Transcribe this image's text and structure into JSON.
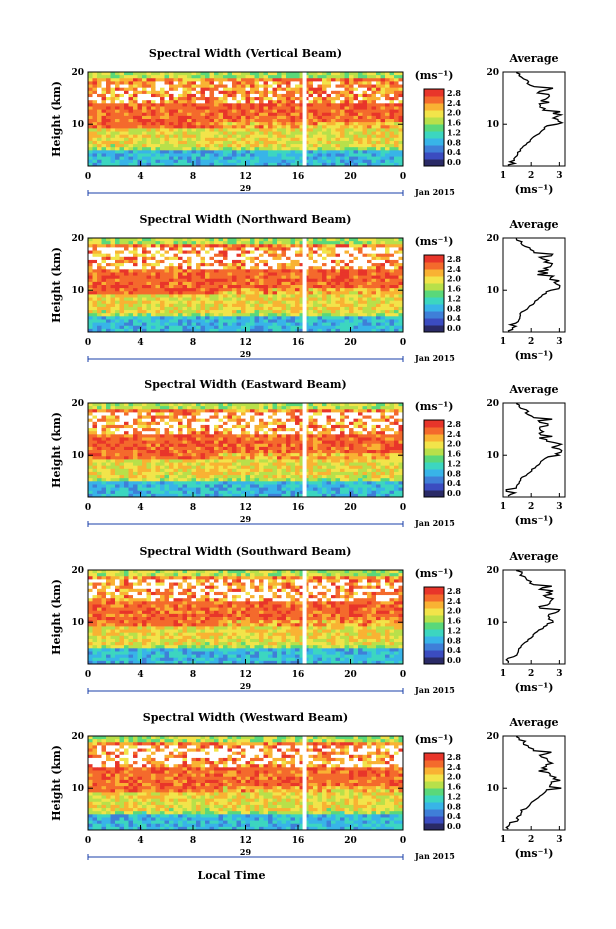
{
  "chart_data": [
    {
      "type": "heatmap",
      "title": "Spectral Width (Vertical Beam)",
      "profile_title": "Average",
      "profile_x_ticks": [
        "1",
        "2",
        "3"
      ]
    },
    {
      "type": "heatmap",
      "title": "Spectral Width (Northward Beam)",
      "profile_title": "Average",
      "profile_x_ticks": [
        "1",
        "2",
        "3"
      ]
    },
    {
      "type": "heatmap",
      "title": "Spectral Width (Eastward Beam)",
      "profile_title": "Average",
      "profile_x_ticks": [
        "1",
        "2",
        "3"
      ]
    },
    {
      "type": "heatmap",
      "title": "Spectral Width (Southward Beam)",
      "profile_title": "Average",
      "profile_x_ticks": [
        "1",
        "2",
        "3"
      ]
    },
    {
      "type": "heatmap",
      "title": "Spectral Width (Westward Beam)",
      "profile_title": "Average",
      "profile_x_ticks": [
        "1",
        "2",
        "3"
      ]
    }
  ],
  "shared": {
    "ylabel": "Height (km)",
    "y_ticks": [
      "20",
      "10"
    ],
    "y_range_km": [
      2,
      20
    ],
    "x_ticks": [
      "0",
      "4",
      "8",
      "12",
      "16",
      "20",
      "0"
    ],
    "x_range_hours": [
      0,
      24
    ],
    "day_label": "29",
    "month_label": "Jan 2015",
    "xlabel": "Local Time",
    "colorbar_unit": "(ms⁻¹)",
    "colorbar_ticks": [
      "2.8",
      "2.4",
      "2.0",
      "1.6",
      "1.2",
      "0.8",
      "0.4",
      "0.0"
    ],
    "colorbar_range": [
      0.0,
      2.8
    ],
    "profile_xlabel": "(ms⁻¹)",
    "profile_y_ticks": [
      "20",
      "10"
    ],
    "colors": {
      "colormap": [
        "#2a2a66",
        "#3b4cc0",
        "#3f7fd8",
        "#38b4e8",
        "#3cd6c0",
        "#5ad87a",
        "#b8e04a",
        "#f2e44a",
        "#f9b233",
        "#f46a2c",
        "#e8352a"
      ],
      "data_gap": "#ffffff",
      "axes": "#000000"
    }
  }
}
